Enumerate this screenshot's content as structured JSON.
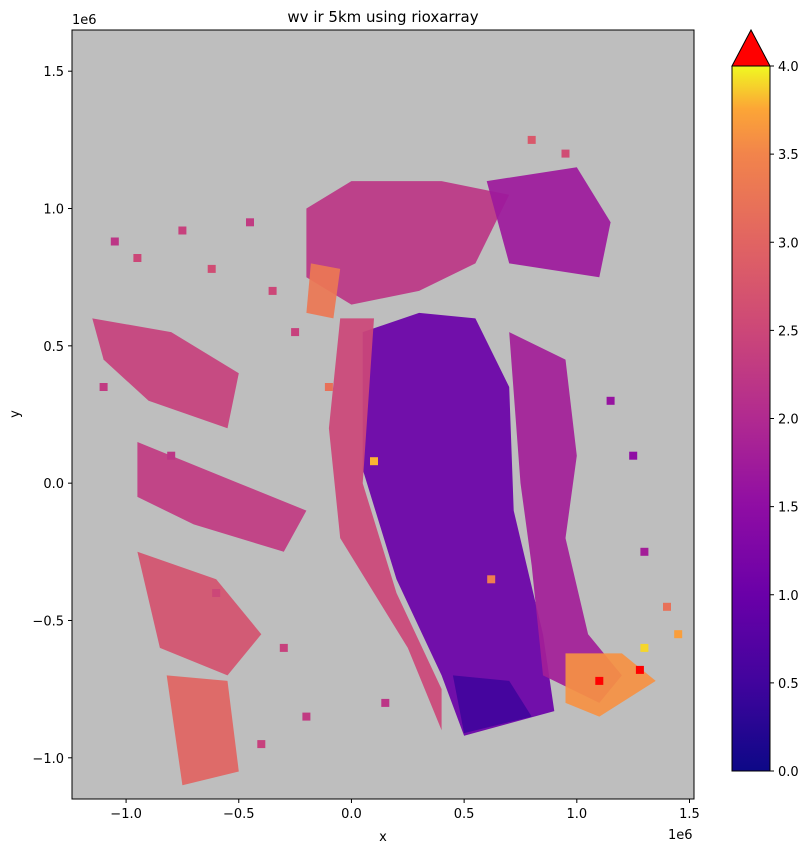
{
  "chart_data": {
    "type": "heatmap",
    "title": "wv ir 5km using rioxarray",
    "xlabel": "x",
    "ylabel": "y",
    "x_offset_label": "1e6",
    "y_offset_label": "1e6",
    "xlim": [
      -1.24,
      1.52
    ],
    "ylim": [
      -1.15,
      1.65
    ],
    "xticks": [
      -1.0,
      -0.5,
      0.0,
      0.5,
      1.0,
      1.5
    ],
    "xtick_labels": [
      "−1.0",
      "−0.5",
      "0.0",
      "0.5",
      "1.0",
      "1.5"
    ],
    "yticks": [
      -1.0,
      -0.5,
      0.0,
      0.5,
      1.0,
      1.5
    ],
    "ytick_labels": [
      "−1.0",
      "−0.5",
      "0.0",
      "0.5",
      "1.0",
      "1.5"
    ],
    "background_color": "#bebebe",
    "colormap": "plasma",
    "colorbar": {
      "vmin": 0.0,
      "vmax": 4.0,
      "ticks": [
        0.0,
        0.5,
        1.0,
        1.5,
        2.0,
        2.5,
        3.0,
        3.5,
        4.0
      ],
      "tick_labels": [
        "0.0",
        "0.5",
        "1.0",
        "1.5",
        "2.0",
        "2.5",
        "3.0",
        "3.5",
        "4.0"
      ],
      "extend_max_color": "#ff0000"
    },
    "regions": [
      {
        "name": "central-low",
        "level": 1.0,
        "polygon": [
          [
            0.05,
            0.55
          ],
          [
            0.3,
            0.62
          ],
          [
            0.55,
            0.6
          ],
          [
            0.7,
            0.35
          ],
          [
            0.72,
            -0.1
          ],
          [
            0.85,
            -0.55
          ],
          [
            0.9,
            -0.83
          ],
          [
            0.5,
            -0.92
          ],
          [
            0.4,
            -0.7
          ],
          [
            0.2,
            -0.35
          ],
          [
            0.05,
            0.05
          ]
        ]
      },
      {
        "name": "core-min",
        "level": 0.5,
        "polygon": [
          [
            0.45,
            -0.7
          ],
          [
            0.7,
            -0.72
          ],
          [
            0.8,
            -0.85
          ],
          [
            0.5,
            -0.91
          ]
        ]
      },
      {
        "name": "western-edge",
        "level": 2.5,
        "polygon": [
          [
            -0.05,
            0.6
          ],
          [
            0.1,
            0.6
          ],
          [
            0.05,
            0.0
          ],
          [
            0.2,
            -0.4
          ],
          [
            0.4,
            -0.75
          ],
          [
            0.4,
            -0.9
          ],
          [
            0.25,
            -0.6
          ],
          [
            -0.05,
            -0.2
          ],
          [
            -0.1,
            0.2
          ]
        ]
      },
      {
        "name": "northern-cap",
        "level": 2.2,
        "polygon": [
          [
            -0.2,
            1.0
          ],
          [
            0.0,
            1.1
          ],
          [
            0.4,
            1.1
          ],
          [
            0.7,
            1.05
          ],
          [
            0.55,
            0.8
          ],
          [
            0.3,
            0.7
          ],
          [
            0.0,
            0.65
          ],
          [
            -0.2,
            0.75
          ]
        ]
      },
      {
        "name": "north-high",
        "level": 3.3,
        "polygon": [
          [
            -0.18,
            0.8
          ],
          [
            -0.05,
            0.78
          ],
          [
            -0.08,
            0.6
          ],
          [
            -0.2,
            0.62
          ]
        ]
      },
      {
        "name": "east-band",
        "level": 1.8,
        "polygon": [
          [
            0.7,
            0.55
          ],
          [
            0.95,
            0.45
          ],
          [
            1.0,
            0.1
          ],
          [
            0.95,
            -0.2
          ],
          [
            1.05,
            -0.55
          ],
          [
            1.2,
            -0.7
          ],
          [
            1.1,
            -0.8
          ],
          [
            0.85,
            -0.7
          ],
          [
            0.8,
            -0.3
          ],
          [
            0.75,
            0.0
          ]
        ]
      },
      {
        "name": "southeast-high",
        "level": 3.6,
        "polygon": [
          [
            0.95,
            -0.62
          ],
          [
            1.2,
            -0.62
          ],
          [
            1.35,
            -0.72
          ],
          [
            1.1,
            -0.85
          ],
          [
            0.95,
            -0.8
          ]
        ]
      },
      {
        "name": "ne-streaks",
        "level": 1.7,
        "polygon": [
          [
            0.6,
            1.1
          ],
          [
            1.0,
            1.15
          ],
          [
            1.15,
            0.95
          ],
          [
            1.1,
            0.75
          ],
          [
            0.7,
            0.8
          ]
        ]
      },
      {
        "name": "west-scatter-1",
        "level": 2.4,
        "polygon": [
          [
            -1.15,
            0.6
          ],
          [
            -0.8,
            0.55
          ],
          [
            -0.5,
            0.4
          ],
          [
            -0.55,
            0.2
          ],
          [
            -0.9,
            0.3
          ],
          [
            -1.1,
            0.45
          ]
        ]
      },
      {
        "name": "west-scatter-2",
        "level": 2.3,
        "polygon": [
          [
            -0.95,
            0.15
          ],
          [
            -0.5,
            0.0
          ],
          [
            -0.2,
            -0.1
          ],
          [
            -0.3,
            -0.25
          ],
          [
            -0.7,
            -0.15
          ],
          [
            -0.95,
            -0.05
          ]
        ]
      },
      {
        "name": "sw-streaks",
        "level": 2.7,
        "polygon": [
          [
            -0.95,
            -0.25
          ],
          [
            -0.6,
            -0.35
          ],
          [
            -0.4,
            -0.55
          ],
          [
            -0.55,
            -0.7
          ],
          [
            -0.85,
            -0.6
          ]
        ]
      },
      {
        "name": "sw-corner",
        "level": 3.0,
        "polygon": [
          [
            -0.82,
            -0.7
          ],
          [
            -0.55,
            -0.72
          ],
          [
            -0.5,
            -1.05
          ],
          [
            -0.75,
            -1.1
          ]
        ]
      }
    ],
    "speckle_points": [
      {
        "x": -1.05,
        "y": 0.88,
        "v": 2.2
      },
      {
        "x": -0.95,
        "y": 0.82,
        "v": 2.5
      },
      {
        "x": -0.75,
        "y": 0.92,
        "v": 2.4
      },
      {
        "x": -0.62,
        "y": 0.78,
        "v": 2.6
      },
      {
        "x": -0.45,
        "y": 0.95,
        "v": 2.3
      },
      {
        "x": -0.35,
        "y": 0.7,
        "v": 2.5
      },
      {
        "x": -0.25,
        "y": 0.55,
        "v": 2.4
      },
      {
        "x": -1.1,
        "y": 0.35,
        "v": 2.3
      },
      {
        "x": -0.8,
        "y": 0.1,
        "v": 2.2
      },
      {
        "x": -0.6,
        "y": -0.4,
        "v": 2.5
      },
      {
        "x": -0.3,
        "y": -0.6,
        "v": 2.4
      },
      {
        "x": -0.2,
        "y": -0.85,
        "v": 2.3
      },
      {
        "x": 0.15,
        "y": -0.8,
        "v": 2.2
      },
      {
        "x": -0.4,
        "y": -0.95,
        "v": 2.4
      },
      {
        "x": 1.15,
        "y": 0.3,
        "v": 1.6
      },
      {
        "x": 1.25,
        "y": 0.1,
        "v": 1.5
      },
      {
        "x": 1.3,
        "y": -0.25,
        "v": 1.8
      },
      {
        "x": 1.4,
        "y": -0.45,
        "v": 3.2
      },
      {
        "x": 1.45,
        "y": -0.55,
        "v": 3.7
      },
      {
        "x": 1.3,
        "y": -0.6,
        "v": 3.9
      },
      {
        "x": 0.8,
        "y": 1.25,
        "v": 2.8
      },
      {
        "x": 0.95,
        "y": 1.2,
        "v": 2.6
      },
      {
        "x": 1.1,
        "y": -0.72,
        "v": 4.2
      },
      {
        "x": 1.28,
        "y": -0.68,
        "v": 4.3
      },
      {
        "x": -0.1,
        "y": 0.35,
        "v": 3.2
      },
      {
        "x": 0.1,
        "y": 0.08,
        "v": 3.8
      },
      {
        "x": 0.62,
        "y": -0.35,
        "v": 3.4
      }
    ]
  }
}
